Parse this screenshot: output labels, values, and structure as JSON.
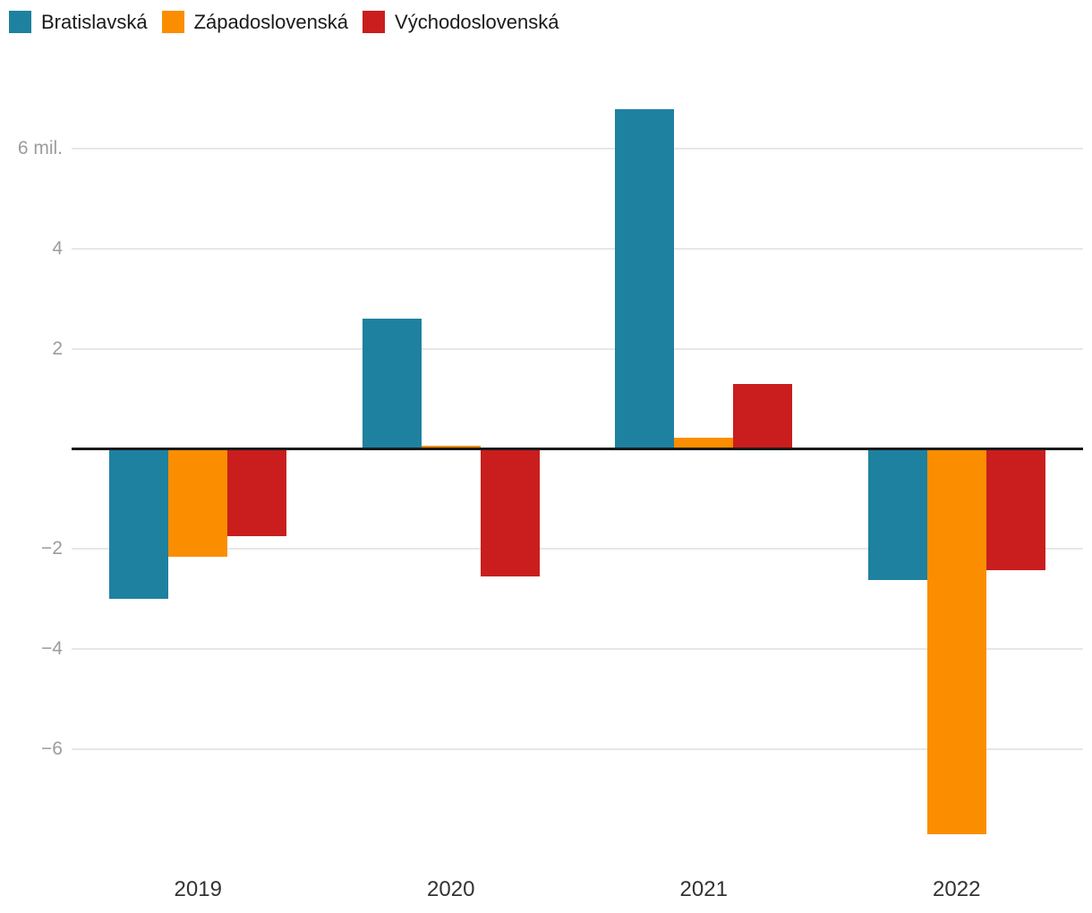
{
  "chart_data": {
    "type": "bar",
    "title": "",
    "xlabel": "",
    "ylabel": "",
    "unit": "mil.",
    "categories": [
      "2019",
      "2020",
      "2021",
      "2022"
    ],
    "series": [
      {
        "name": "Bratislavská",
        "color": "#1E81A0",
        "values": [
          -3.0,
          2.6,
          6.78,
          -2.62
        ]
      },
      {
        "name": "Západoslovenská",
        "color": "#FA8E00",
        "values": [
          -2.15,
          0.07,
          0.22,
          -7.7
        ]
      },
      {
        "name": "Východoslovenská",
        "color": "#C91E1D",
        "values": [
          -1.75,
          -2.55,
          1.29,
          -2.43
        ]
      }
    ],
    "yticks": [
      {
        "value": 6,
        "label": "6 mil."
      },
      {
        "value": 4,
        "label": "4"
      },
      {
        "value": 2,
        "label": "2"
      },
      {
        "value": -2,
        "label": "−2"
      },
      {
        "value": -4,
        "label": "−4"
      },
      {
        "value": -6,
        "label": "−6"
      }
    ],
    "ylim": [
      -7.9,
      7.2
    ],
    "grid": true,
    "legend_position": "top-left",
    "zero_line_color": "#1a1a1a",
    "gridline_color": "#e7e7e7",
    "y_tick_color": "#9c9c9c",
    "x_tick_color": "#333333",
    "legend_text_color": "#1a1a1a"
  }
}
